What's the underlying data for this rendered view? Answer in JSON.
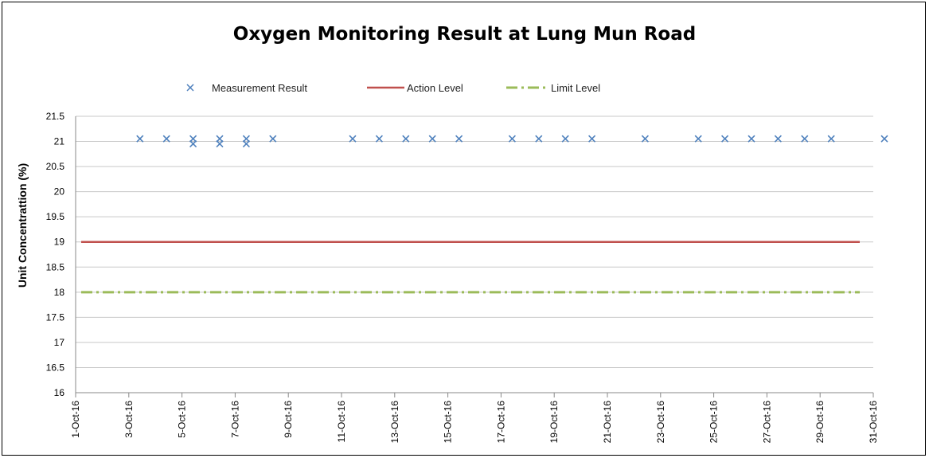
{
  "chart_data": {
    "type": "line",
    "title": "Oxygen Monitoring Result at Lung Mun Road",
    "xlabel": "",
    "ylabel": "Unit Concentrattion (%)",
    "ylim": [
      16,
      21.5
    ],
    "yticks": [
      "16",
      "16.5",
      "17",
      "17.5",
      "18",
      "18.5",
      "19",
      "19.5",
      "20",
      "20.5",
      "21",
      "21.5"
    ],
    "xlim": [
      "1-Oct-16",
      "31-Oct-16"
    ],
    "x_tick_labels": [
      "1-Oct-16",
      "3-Oct-16",
      "5-Oct-16",
      "7-Oct-16",
      "9-Oct-16",
      "11-Oct-16",
      "13-Oct-16",
      "15-Oct-16",
      "17-Oct-16",
      "19-Oct-16",
      "21-Oct-16",
      "23-Oct-16",
      "25-Oct-16",
      "27-Oct-16",
      "29-Oct-16",
      "31-Oct-16"
    ],
    "grid": "horizontal",
    "legend_position": "top",
    "series": [
      {
        "name": "Measurement Result",
        "kind": "scatter",
        "marker": "x",
        "color": "#4F81BD",
        "points": [
          {
            "x": "3-Oct-16",
            "y": 21.1
          },
          {
            "x": "4-Oct-16",
            "y": 21.1
          },
          {
            "x": "5-Oct-16",
            "y": 21.1
          },
          {
            "x": "5-Oct-16",
            "y": 21.0
          },
          {
            "x": "6-Oct-16",
            "y": 21.1
          },
          {
            "x": "6-Oct-16",
            "y": 21.0
          },
          {
            "x": "7-Oct-16",
            "y": 21.1
          },
          {
            "x": "7-Oct-16",
            "y": 21.0
          },
          {
            "x": "8-Oct-16",
            "y": 21.1
          },
          {
            "x": "11-Oct-16",
            "y": 21.1
          },
          {
            "x": "12-Oct-16",
            "y": 21.1
          },
          {
            "x": "13-Oct-16",
            "y": 21.1
          },
          {
            "x": "14-Oct-16",
            "y": 21.1
          },
          {
            "x": "15-Oct-16",
            "y": 21.1
          },
          {
            "x": "17-Oct-16",
            "y": 21.1
          },
          {
            "x": "18-Oct-16",
            "y": 21.1
          },
          {
            "x": "19-Oct-16",
            "y": 21.1
          },
          {
            "x": "20-Oct-16",
            "y": 21.1
          },
          {
            "x": "22-Oct-16",
            "y": 21.1
          },
          {
            "x": "24-Oct-16",
            "y": 21.1
          },
          {
            "x": "25-Oct-16",
            "y": 21.1
          },
          {
            "x": "26-Oct-16",
            "y": 21.1
          },
          {
            "x": "27-Oct-16",
            "y": 21.1
          },
          {
            "x": "28-Oct-16",
            "y": 21.1
          },
          {
            "x": "29-Oct-16",
            "y": 21.1
          },
          {
            "x": "31-Oct-16",
            "y": 21.1
          }
        ]
      },
      {
        "name": "Action Level",
        "kind": "line",
        "style": "solid",
        "color": "#C0504D",
        "y": 19,
        "x_range": [
          "1-Oct-16",
          "31-Oct-16"
        ]
      },
      {
        "name": "Limit Level",
        "kind": "line",
        "style": "dash-dot",
        "color": "#9BBB59",
        "y": 18,
        "x_range": [
          "1-Oct-16",
          "31-Oct-16"
        ]
      }
    ]
  }
}
